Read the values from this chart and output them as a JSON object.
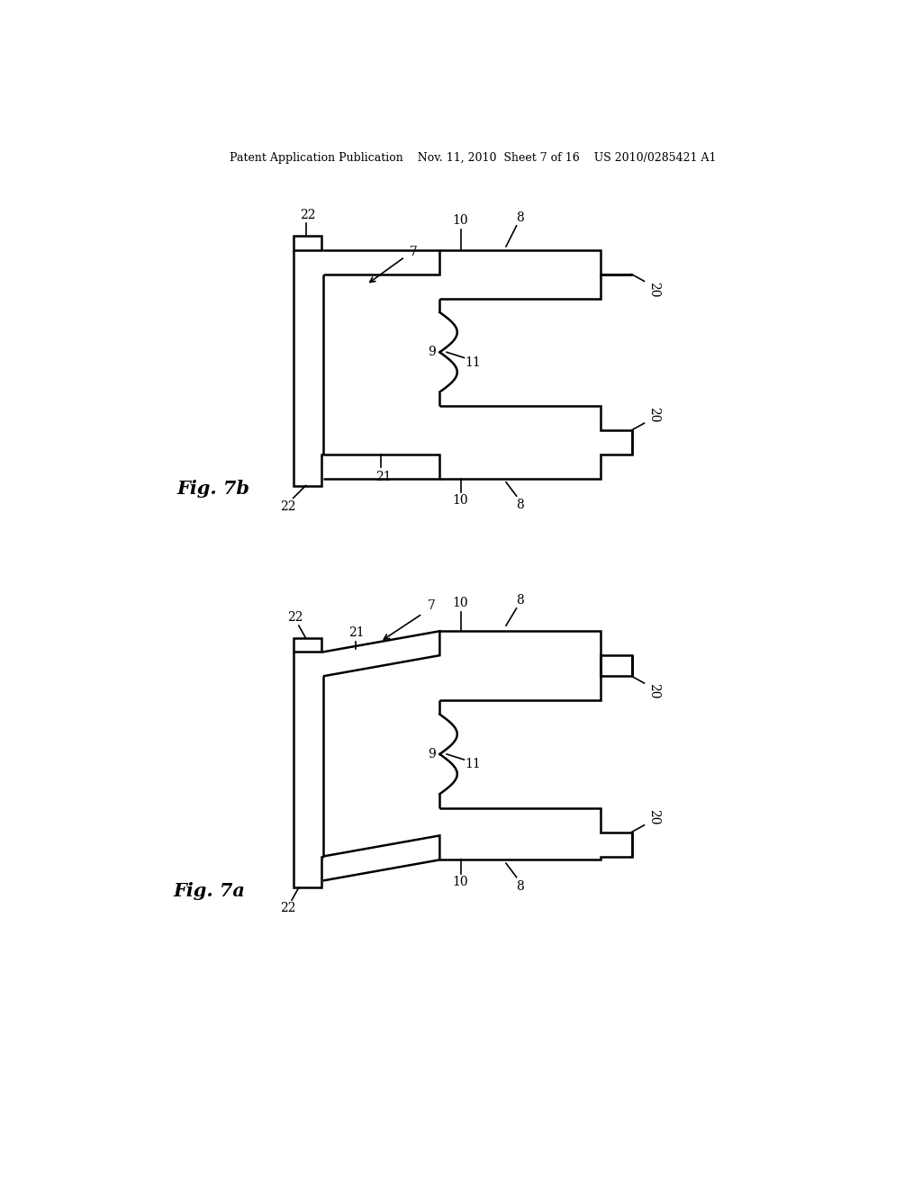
{
  "bg_color": "#ffffff",
  "line_color": "#000000",
  "line_width": 1.8,
  "header_text": "Patent Application Publication    Nov. 11, 2010  Sheet 7 of 16    US 2010/0285421 A1",
  "fig7b_label": "Fig. 7b",
  "fig7a_label": "Fig. 7a"
}
